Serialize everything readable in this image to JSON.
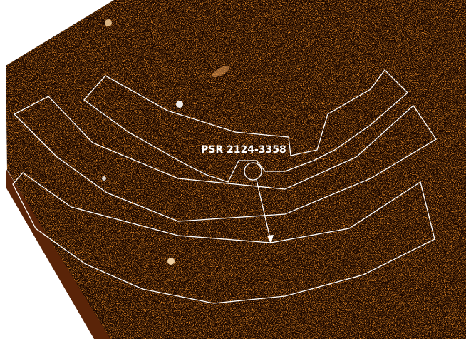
{
  "label": "PSR 2124-3358"
}
